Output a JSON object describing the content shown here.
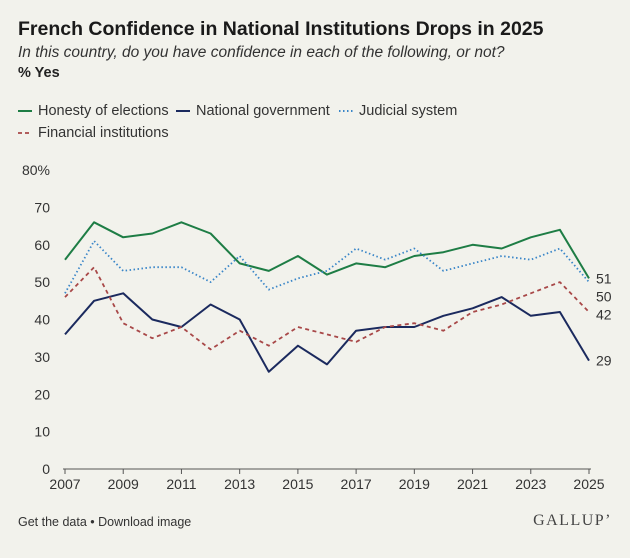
{
  "header": {
    "title": "French Confidence in National Institutions Drops in 2025",
    "subtitle": "In this country, do you have confidence in each of the following, or not?",
    "unit": "% Yes"
  },
  "legend": [
    {
      "label": "Honesty of elections",
      "color": "#1e7d45",
      "dash": "solid"
    },
    {
      "label": "National government",
      "color": "#1b2a5e",
      "dash": "solid"
    },
    {
      "label": "Judicial system",
      "color": "#3a86c8",
      "dash": "dotted"
    },
    {
      "label": "Financial institutions",
      "color": "#a84848",
      "dash": "dashed"
    }
  ],
  "chart_data": {
    "type": "line",
    "title": "French Confidence in National Institutions Drops in 2025",
    "xlabel": "",
    "ylabel": "% Yes",
    "x": [
      2007,
      2008,
      2009,
      2010,
      2011,
      2012,
      2013,
      2014,
      2015,
      2016,
      2017,
      2018,
      2019,
      2020,
      2021,
      2022,
      2023,
      2024,
      2025
    ],
    "xticks": [
      "2007",
      "2009",
      "2011",
      "2013",
      "2015",
      "2017",
      "2019",
      "2021",
      "2023",
      "2025"
    ],
    "ylim": [
      0,
      80
    ],
    "yticks": [
      "0",
      "10",
      "20",
      "30",
      "40",
      "50",
      "60",
      "70",
      "80%"
    ],
    "series": [
      {
        "name": "Honesty of elections",
        "color": "#1e7d45",
        "dash": "solid",
        "values": [
          56,
          66,
          62,
          63,
          66,
          63,
          55,
          53,
          57,
          52,
          55,
          54,
          57,
          58,
          60,
          59,
          62,
          64,
          51
        ],
        "end_label": "51"
      },
      {
        "name": "National government",
        "color": "#1b2a5e",
        "dash": "solid",
        "values": [
          36,
          45,
          47,
          40,
          38,
          44,
          40,
          26,
          33,
          28,
          37,
          38,
          38,
          41,
          43,
          46,
          41,
          42,
          29
        ],
        "end_label": "29"
      },
      {
        "name": "Judicial system",
        "color": "#3a86c8",
        "dash": "dotted",
        "values": [
          47,
          61,
          53,
          54,
          54,
          50,
          57,
          48,
          51,
          53,
          59,
          56,
          59,
          53,
          55,
          57,
          56,
          59,
          50
        ],
        "end_label": "50"
      },
      {
        "name": "Financial institutions",
        "color": "#a84848",
        "dash": "dashed",
        "values": [
          46,
          54,
          39,
          35,
          38,
          32,
          37,
          33,
          38,
          36,
          34,
          38,
          39,
          37,
          42,
          44,
          47,
          50,
          42
        ],
        "end_label": "42"
      }
    ]
  },
  "footer": {
    "get_data": "Get the data",
    "separator": " • ",
    "download": "Download image",
    "brand": "GALLUP’"
  }
}
